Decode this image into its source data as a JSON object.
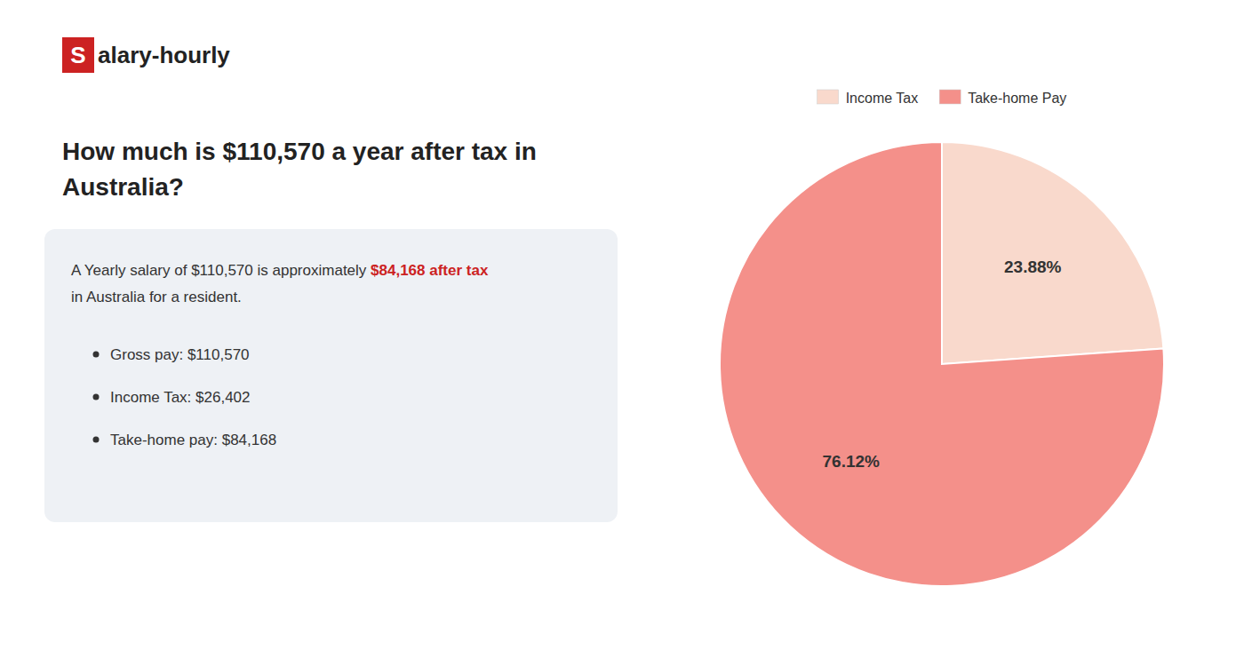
{
  "chart_data": {
    "type": "pie",
    "title": "How much is $110,570 a year after tax in\nAustralia?",
    "categories": [
      "Income Tax",
      "Take-home Pay"
    ],
    "values": [
      23.88,
      76.12
    ],
    "value_labels": [
      "23.88%",
      "76.12%"
    ],
    "colors": [
      "#f9d9cc",
      "#f4908a"
    ],
    "data_labels": true,
    "legend": "top",
    "annotations": [
      {
        "text": "S",
        "color": "#cc2222"
      },
      {
        "text": "alary-hourly"
      },
      {
        "text": "A Yearly salary of $110,570 is approximately "
      },
      {
        "text": "$84,168 after tax",
        "color": "#cc2222"
      },
      {
        "text": "in Australia for a resident."
      },
      {
        "text": "Gross pay: $110,570"
      },
      {
        "text": "Income Tax: $26,402"
      },
      {
        "text": "Take-home pay: $84,168"
      }
    ]
  }
}
